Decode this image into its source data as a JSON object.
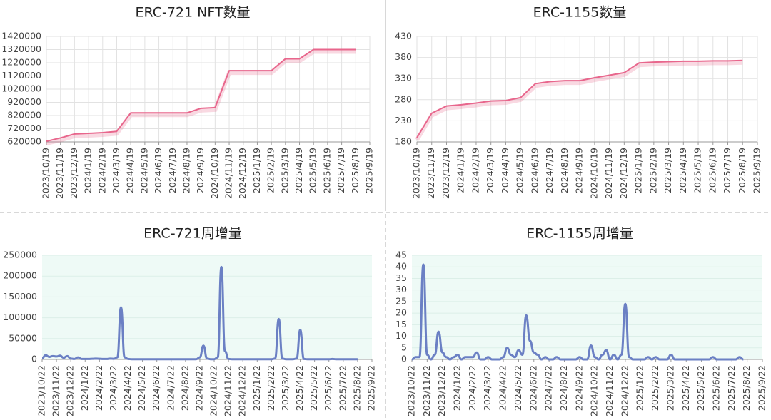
{
  "chart_data": [
    {
      "type": "line",
      "title": "ERC-721 NFT数量",
      "grid": "both",
      "smooth": false,
      "shadow": true,
      "categories": [
        "2023/10/19",
        "2023/11/19",
        "2023/12/19",
        "2024/1/19",
        "2024/2/19",
        "2024/3/19",
        "2024/4/19",
        "2024/5/19",
        "2024/6/19",
        "2024/7/19",
        "2024/8/19",
        "2024/9/19",
        "2024/10/19",
        "2024/11/19",
        "2024/12/19",
        "2025/1/19",
        "2025/2/19",
        "2025/3/19",
        "2025/4/19",
        "2025/5/19",
        "2025/6/19",
        "2025/7/19",
        "2025/8/19",
        "2025/9/19"
      ],
      "series": [
        {
          "color": "#e8668c",
          "values": [
            625000,
            650000,
            680000,
            685000,
            690000,
            700000,
            840000,
            840000,
            840000,
            840000,
            840000,
            875000,
            880000,
            1160000,
            1160000,
            1160000,
            1160000,
            1250000,
            1250000,
            1320000,
            1320000,
            1320000,
            1320000,
            null
          ]
        }
      ],
      "ylim": [
        620000,
        1420000
      ],
      "yticks": [
        620000,
        720000,
        820000,
        920000,
        1020000,
        1120000,
        1220000,
        1320000,
        1420000
      ]
    },
    {
      "type": "line",
      "title": "ERC-1155数量",
      "grid": "both",
      "smooth": false,
      "shadow": true,
      "categories": [
        "2023/10/19",
        "2023/11/19",
        "2023/12/19",
        "2024/1/19",
        "2024/2/19",
        "2024/3/19",
        "2024/4/19",
        "2024/5/19",
        "2024/6/19",
        "2024/7/19",
        "2024/8/19",
        "2024/9/19",
        "2024/10/19",
        "2024/11/19",
        "2024/12/19",
        "2025/1/19",
        "2025/2/19",
        "2025/3/19",
        "2025/4/19",
        "2025/5/19",
        "2025/6/19",
        "2025/7/19",
        "2025/8/19",
        "2025/9/19"
      ],
      "series": [
        {
          "color": "#e8668c",
          "values": [
            190,
            248,
            265,
            268,
            272,
            277,
            278,
            285,
            318,
            323,
            325,
            325,
            332,
            338,
            344,
            367,
            369,
            370,
            371,
            371,
            372,
            372,
            373,
            null
          ]
        }
      ],
      "ylim": [
        180,
        430
      ],
      "yticks": [
        180,
        230,
        280,
        330,
        380,
        430
      ]
    },
    {
      "type": "line",
      "title": "ERC-721周增量",
      "grid": "y",
      "smooth": true,
      "shadow": false,
      "plot_color": "#eefaf6",
      "categories": [
        "2023/10/22",
        null,
        null,
        null,
        "2023/11/22",
        null,
        null,
        null,
        "2023/12/22",
        null,
        null,
        null,
        "2024/1/22",
        null,
        null,
        null,
        "2024/2/22",
        null,
        null,
        null,
        "2024/3/22",
        null,
        null,
        null,
        "2024/4/22",
        null,
        null,
        null,
        "2024/5/22",
        null,
        null,
        null,
        "2024/6/22",
        null,
        null,
        null,
        "2024/7/22",
        null,
        null,
        null,
        "2024/8/22",
        null,
        null,
        null,
        "2024/9/22",
        null,
        null,
        null,
        "2024/10/22",
        null,
        null,
        null,
        "2024/11/22",
        null,
        null,
        null,
        "2024/12/22",
        null,
        null,
        null,
        "2025/1/22",
        null,
        null,
        null,
        "2025/2/22",
        null,
        null,
        null,
        "2025/3/22",
        null,
        null,
        null,
        "2025/4/22",
        null,
        null,
        null,
        "2025/5/22",
        null,
        null,
        null,
        "2025/6/22",
        null,
        null,
        null,
        "2025/7/22",
        null,
        null,
        null,
        "2025/8/22",
        null,
        null,
        null,
        "2025/9/22"
      ],
      "series": [
        {
          "color": "#6b80c4",
          "values": [
            3000,
            10000,
            6000,
            8000,
            7000,
            9000,
            4000,
            8000,
            2000,
            1000,
            5000,
            1000,
            1000,
            1000,
            1500,
            2000,
            1500,
            1000,
            1000,
            2000,
            1500,
            5000,
            125000,
            5000,
            1000,
            500,
            500,
            500,
            500,
            500,
            500,
            500,
            500,
            500,
            500,
            500,
            500,
            500,
            500,
            500,
            500,
            500,
            500,
            500,
            5000,
            33000,
            2000,
            500,
            500,
            5000,
            222000,
            20000,
            1000,
            500,
            500,
            500,
            500,
            500,
            500,
            500,
            500,
            500,
            500,
            500,
            500,
            2000,
            97000,
            2000,
            500,
            500,
            500,
            2000,
            71000,
            1000,
            500,
            500,
            500,
            500,
            500,
            500,
            500,
            1000,
            500,
            500,
            500,
            500,
            500,
            500,
            500,
            null,
            null,
            null,
            null
          ]
        }
      ],
      "ylim": [
        0,
        250000
      ],
      "yticks": [
        0,
        50000,
        100000,
        150000,
        200000,
        250000
      ]
    },
    {
      "type": "line",
      "title": "ERC-1155周增量",
      "grid": "y",
      "smooth": true,
      "shadow": false,
      "plot_color": "#eefaf6",
      "categories": [
        "2023/10/22",
        null,
        null,
        null,
        "2023/11/22",
        null,
        null,
        null,
        "2023/12/22",
        null,
        null,
        null,
        "2024/1/22",
        null,
        null,
        null,
        "2024/2/22",
        null,
        null,
        null,
        "2024/3/22",
        null,
        null,
        null,
        "2024/4/22",
        null,
        null,
        null,
        "2024/5/22",
        null,
        null,
        null,
        "2024/6/22",
        null,
        null,
        null,
        "2024/7/22",
        null,
        null,
        null,
        "2024/8/22",
        null,
        null,
        null,
        "2024/9/22",
        null,
        null,
        null,
        "2024/10/22",
        null,
        null,
        null,
        "2024/11/22",
        null,
        null,
        null,
        "2024/12/22",
        null,
        null,
        null,
        "2025/1/22",
        null,
        null,
        null,
        "2025/2/22",
        null,
        null,
        null,
        "2025/3/22",
        null,
        null,
        null,
        "2025/4/22",
        null,
        null,
        null,
        "2025/5/22",
        null,
        null,
        null,
        "2025/6/22",
        null,
        null,
        null,
        "2025/7/22",
        null,
        null,
        null,
        "2025/8/22",
        null,
        null,
        null,
        "2025/9/22"
      ],
      "series": [
        {
          "color": "#6b80c4",
          "values": [
            0,
            1,
            1,
            41,
            2,
            0,
            2,
            12,
            3,
            1,
            0,
            1,
            2,
            0,
            1,
            1,
            1,
            3,
            0,
            0,
            1,
            0,
            0,
            0,
            1,
            5,
            2,
            1,
            4,
            2,
            19,
            8,
            3,
            2,
            0,
            1,
            0,
            0,
            1,
            0,
            0,
            0,
            0,
            0,
            1,
            0,
            0,
            6,
            1,
            0,
            2,
            4,
            0,
            2,
            0,
            2,
            24,
            1,
            0,
            0,
            0,
            0,
            1,
            0,
            1,
            0,
            0,
            0,
            2,
            0,
            0,
            0,
            0,
            0,
            0,
            0,
            0,
            0,
            0,
            1,
            0,
            0,
            0,
            0,
            0,
            0,
            1,
            0,
            null,
            null,
            null,
            null,
            null
          ]
        }
      ],
      "ylim": [
        0,
        45
      ],
      "yticks": [
        0,
        5,
        10,
        15,
        20,
        25,
        30,
        35,
        40,
        45
      ]
    }
  ]
}
